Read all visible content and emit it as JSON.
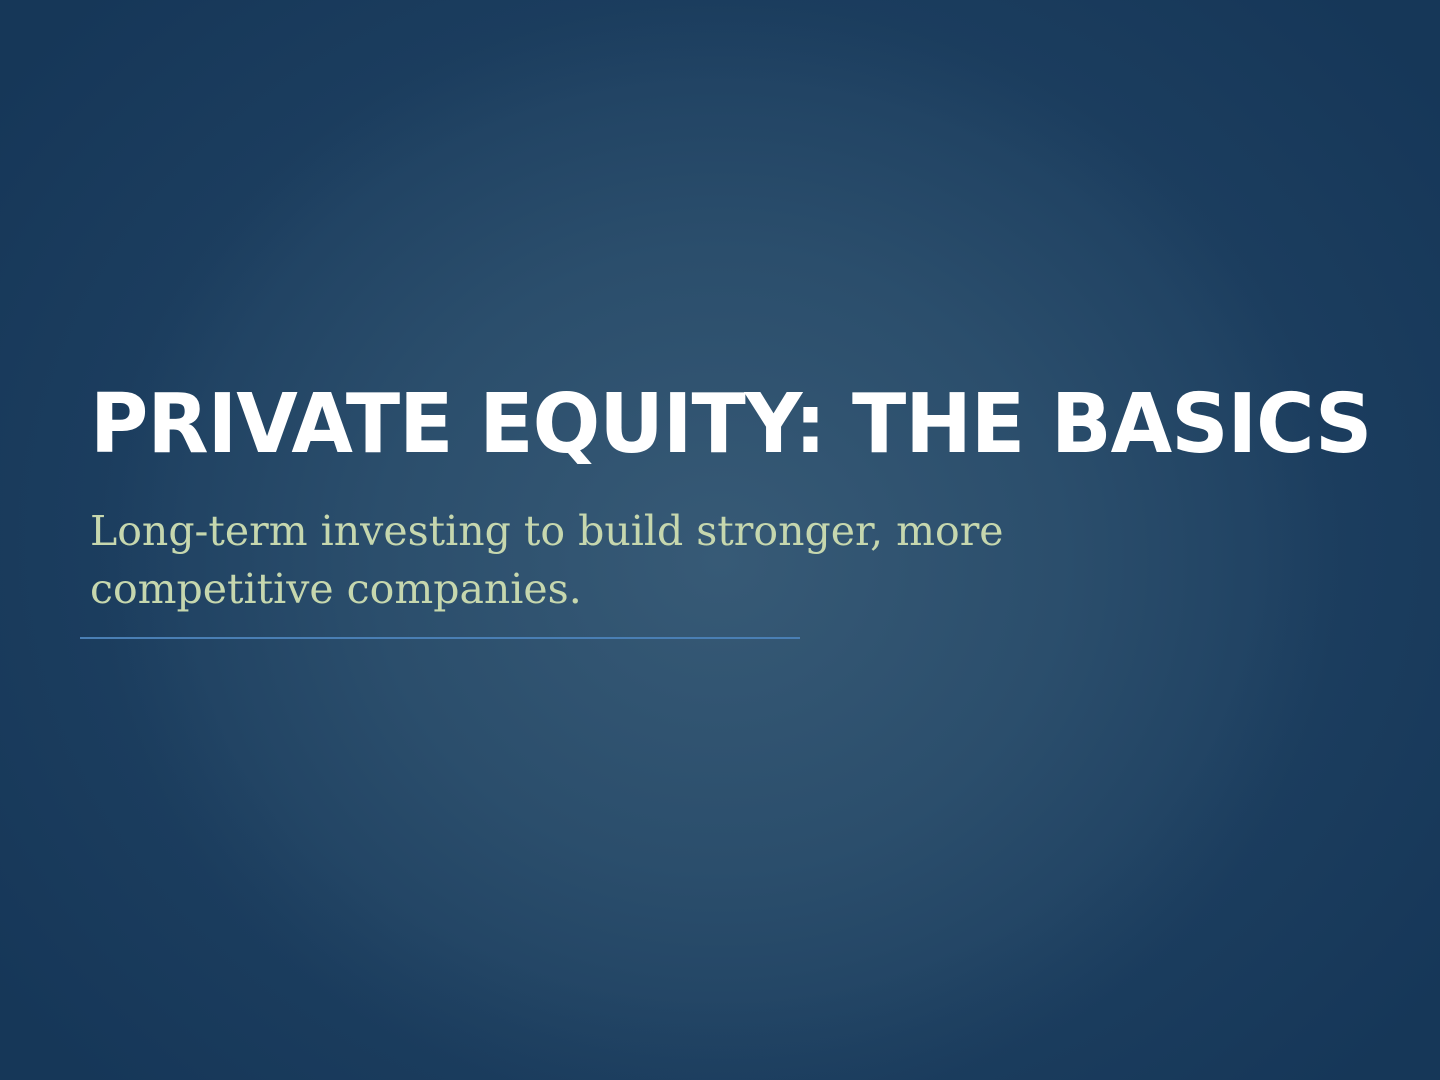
{
  "slide": {
    "title": "PRIVATE EQUITY: THE BASICS",
    "subtitle_lines": [
      "Long-term investing to build stronger, more",
      "competitive companies."
    ]
  },
  "colors": {
    "background": "#2b4e6c",
    "title": "#ffffff",
    "subtitle": "#c6d7ae",
    "rule": "#4a7fb4"
  }
}
